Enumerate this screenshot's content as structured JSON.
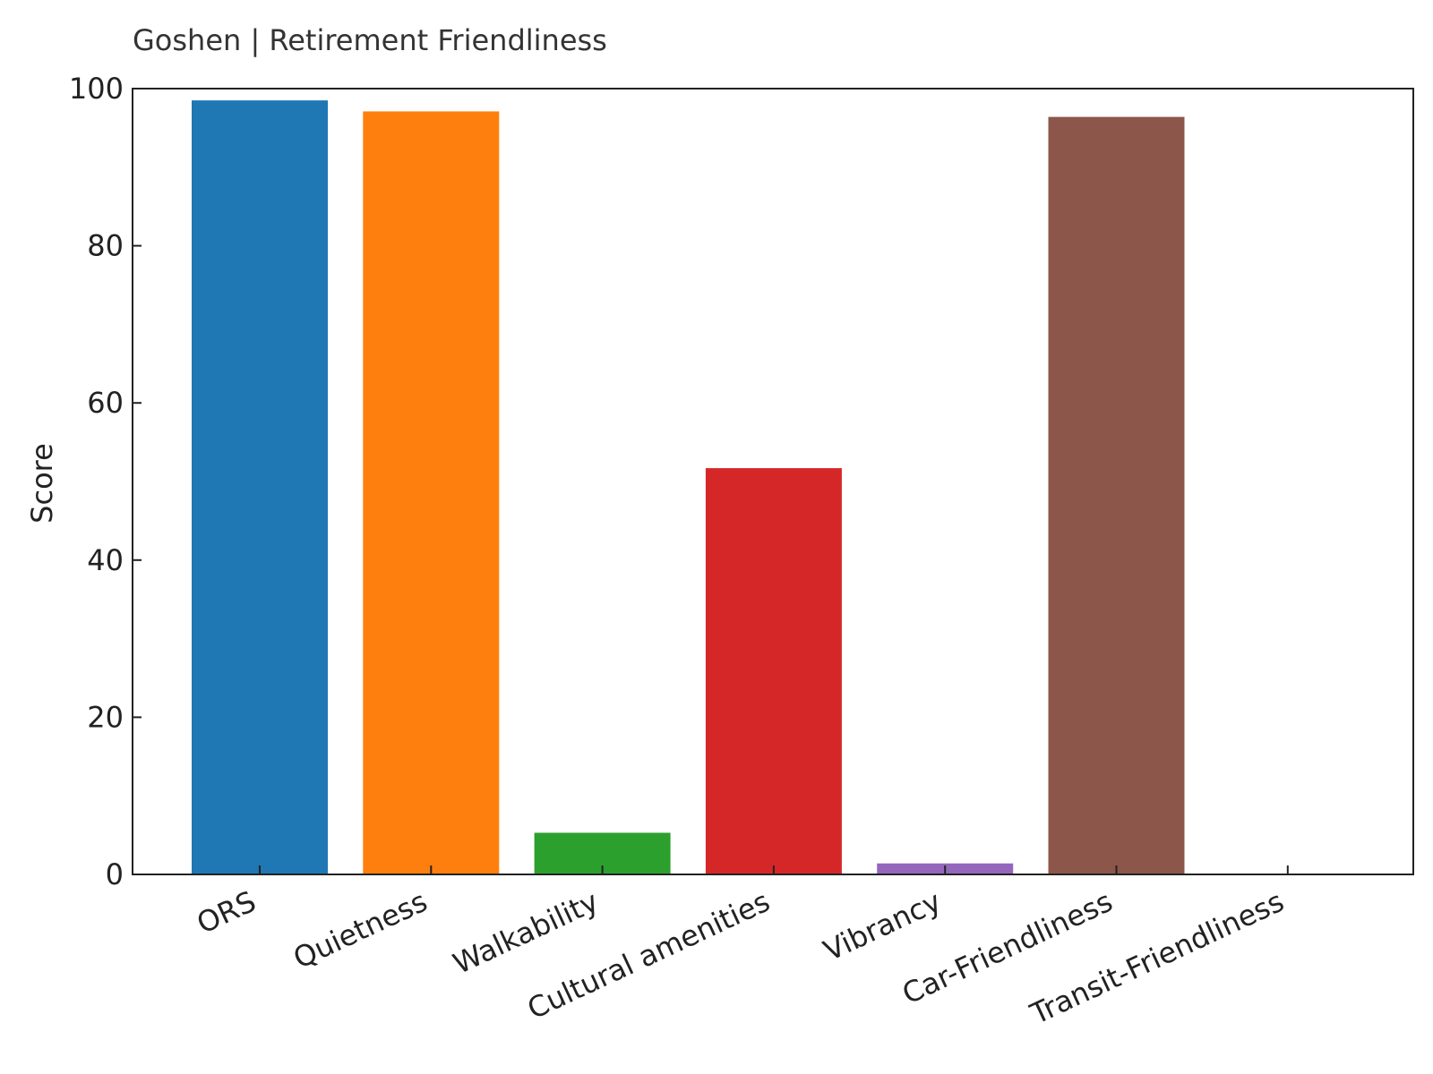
{
  "chart_data": {
    "type": "bar",
    "title": "Goshen | Retirement Friendliness",
    "xlabel": "",
    "ylabel": "Score",
    "ylim": [
      0,
      100
    ],
    "yticks": [
      0,
      20,
      40,
      60,
      80,
      100
    ],
    "grid": false,
    "categories": [
      "ORS",
      "Quietness",
      "Walkability",
      "Cultural amenities",
      "Vibrancy",
      "Car-Friendliness",
      "Transit-Friendliness"
    ],
    "values": [
      98.5,
      97.1,
      5.3,
      51.7,
      1.4,
      96.4,
      0
    ],
    "colors": [
      "#1f77b4",
      "#ff7f0e",
      "#2ca02c",
      "#d62728",
      "#9467bd",
      "#8c564b",
      "#e377c2"
    ]
  }
}
